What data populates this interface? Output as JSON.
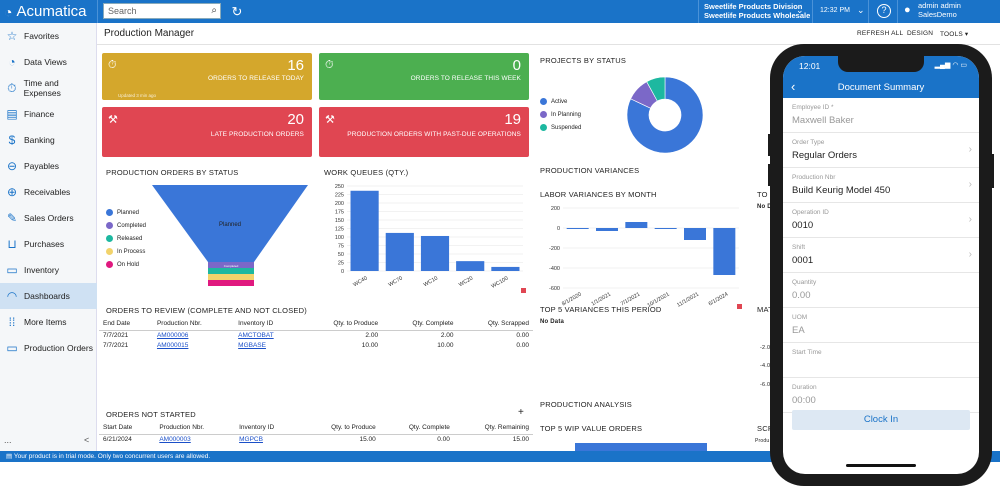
{
  "app": {
    "name": "Acumatica"
  },
  "topbar": {
    "search_placeholder": "Search",
    "tenant_name": "Sweetlife Products Division",
    "tenant_branch": "Sweetlife Products Wholesale",
    "time": "12:32 PM",
    "help": "?",
    "user_name": "admin admin",
    "user_company": "SalesDemo"
  },
  "sidebar": {
    "items": [
      {
        "label": "Favorites",
        "icon": "star-icon"
      },
      {
        "label": "Data Views",
        "icon": "pie-icon"
      },
      {
        "label": "Time and Expenses",
        "icon": "clock-icon"
      },
      {
        "label": "Finance",
        "icon": "document-icon"
      },
      {
        "label": "Banking",
        "icon": "dollar-icon"
      },
      {
        "label": "Payables",
        "icon": "minus-circle-icon"
      },
      {
        "label": "Receivables",
        "icon": "plus-circle-icon"
      },
      {
        "label": "Sales Orders",
        "icon": "edit-icon"
      },
      {
        "label": "Purchases",
        "icon": "cart-icon"
      },
      {
        "label": "Inventory",
        "icon": "truck-icon"
      },
      {
        "label": "Dashboards",
        "icon": "gauge-icon"
      },
      {
        "label": "More Items",
        "icon": "grid-icon"
      },
      {
        "label": "Production Orders",
        "icon": "truck-icon"
      }
    ],
    "active": "Dashboards",
    "footer_dots": "...",
    "footer_collapse": "<"
  },
  "page": {
    "title": "Production Manager",
    "actions": [
      "REFRESH ALL",
      "DESIGN",
      "TOOLS ▾"
    ]
  },
  "tiles": [
    {
      "value": "16",
      "label": "ORDERS TO RELEASE TODAY",
      "sub": "Updated 3 min ago",
      "color": "#d4a72c"
    },
    {
      "value": "0",
      "label": "ORDERS TO RELEASE THIS WEEK",
      "color": "#4caf50"
    },
    {
      "value": "20",
      "label": "LATE PRODUCTION ORDERS",
      "color": "#e04652"
    },
    {
      "value": "19",
      "label": "PRODUCTION ORDERS WITH PAST-DUE OPERATIONS",
      "color": "#e04652"
    }
  ],
  "widgets": {
    "prod_by_status": "PRODUCTION ORDERS BY STATUS",
    "work_queues": "WORK QUEUES (QTY.)",
    "projects_by_status": "PROJECTS BY STATUS",
    "production_variances": "PRODUCTION VARIANCES",
    "labor_variances": "LABOR VARIANCES BY MONTH",
    "to_cut": "TO",
    "top5_variances": "TOP 5 VARIANCES THIS PERIOD",
    "no_data": "No Data",
    "no_data2": "No D",
    "mat_cut": "MAT",
    "production_analysis": "PRODUCTION ANALYSIS",
    "top5_wip": "TOP 5 WIP VALUE ORDERS",
    "scr_cut": "SCR",
    "orders_to_review": "ORDERS TO REVIEW (COMPLETE AND NOT CLOSED)",
    "orders_not_started": "ORDERS NOT STARTED",
    "add": "+"
  },
  "funnel": {
    "legend": [
      {
        "label": "Planned",
        "color": "#3a76d8"
      },
      {
        "label": "Completed",
        "color": "#7b68c8"
      },
      {
        "label": "Released",
        "color": "#1db8a0"
      },
      {
        "label": "In Process",
        "color": "#f2d36b"
      },
      {
        "label": "On Hold",
        "color": "#e0197f"
      }
    ],
    "inner_label": "Planned"
  },
  "projects_legend": [
    {
      "label": "Active",
      "color": "#3a76d8"
    },
    {
      "label": "In Planning",
      "color": "#7b68c8"
    },
    {
      "label": "Suspended",
      "color": "#1db8a0"
    }
  ],
  "chart_data": [
    {
      "type": "bar",
      "title": "WORK QUEUES (QTY.)",
      "categories": [
        "WC40",
        "WC70",
        "WC10",
        "WC20",
        "WC100"
      ],
      "values": [
        236,
        112,
        103,
        29,
        12
      ],
      "ylim": [
        0,
        250
      ],
      "yticks": [
        0,
        25,
        50,
        75,
        100,
        125,
        150,
        175,
        200,
        225,
        250
      ],
      "color": "#3a76d8"
    },
    {
      "type": "bar",
      "title": "LABOR VARIANCES BY MONTH",
      "categories": [
        "8/1/2020",
        "1/1/2021",
        "7/1/2021",
        "10/1/2021",
        "11/1/2021",
        "6/1/2024"
      ],
      "values": [
        -8,
        -30,
        60,
        0,
        -120,
        -470
      ],
      "ylim": [
        -600,
        200
      ],
      "yticks": [
        200,
        0,
        -200,
        -400,
        -600
      ],
      "color": "#3a76d8"
    },
    {
      "type": "pie",
      "title": "PROJECTS BY STATUS",
      "categories": [
        "Active",
        "In Planning",
        "Suspended"
      ],
      "values": [
        82,
        10,
        8
      ]
    }
  ],
  "review_table": {
    "columns": [
      "End Date",
      "Production Nbr.",
      "Inventory ID",
      "Qty. to Produce",
      "Qty. Complete",
      "Qty. Scrapped"
    ],
    "rows": [
      [
        "7/7/2021",
        "AM000006",
        "AMCTOBAT",
        "2.00",
        "2.00",
        "0.00"
      ],
      [
        "7/7/2021",
        "AM000015",
        "MGBASE",
        "10.00",
        "10.00",
        "0.00"
      ]
    ]
  },
  "notstarted_table": {
    "columns": [
      "Start Date",
      "Production Nbr.",
      "Inventory ID",
      "Qty. to Produce",
      "Qty. Complete",
      "Qty. Remaining"
    ],
    "rows": [
      [
        "6/21/2024",
        "AM000003",
        "MGPCB",
        "15.00",
        "0.00",
        "15.00"
      ]
    ]
  },
  "misc": {
    "mat_ticks": [
      "-2.0",
      "-4.0",
      "-6.0"
    ],
    "scr_text": "Produ",
    "funnel_small": "Completed"
  },
  "trial_banner": "Your product is in trial mode. Only two concurrent users are allowed.",
  "mobile": {
    "time": "12:01",
    "title": "Document Summary",
    "fields": [
      {
        "label": "Employee ID *",
        "value": "Maxwell Baker",
        "gray": true,
        "chevron": false
      },
      {
        "label": "Order Type",
        "value": "Regular Orders",
        "gray": false,
        "chevron": true
      },
      {
        "label": "Production Nbr",
        "value": "Build Keurig Model 450",
        "gray": false,
        "chevron": true
      },
      {
        "label": "Operation ID",
        "value": "0010",
        "gray": false,
        "chevron": true
      },
      {
        "label": "Shift",
        "value": "0001",
        "gray": false,
        "chevron": true
      },
      {
        "label": "Quantity",
        "value": "0.00",
        "gray": true,
        "chevron": false
      },
      {
        "label": "UOM",
        "value": "EA",
        "gray": true,
        "chevron": false
      },
      {
        "label": "Start Time",
        "value": "",
        "gray": true,
        "chevron": false
      },
      {
        "label": "Duration",
        "value": "00:00",
        "gray": true,
        "chevron": false
      }
    ],
    "button": "Clock In"
  }
}
